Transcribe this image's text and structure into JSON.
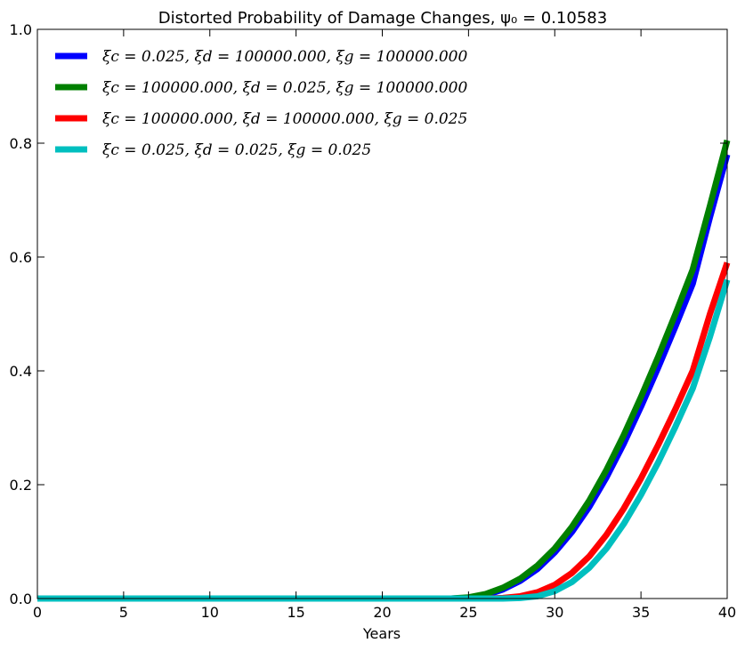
{
  "chart_data": {
    "type": "line",
    "title": "Distorted Probability of Damage Changes, ψ₀ = 0.10583",
    "xlabel": "Years",
    "ylabel": "",
    "xlim": [
      0,
      40
    ],
    "ylim": [
      0,
      1.0
    ],
    "x_ticks": [
      "0",
      "5",
      "10",
      "15",
      "20",
      "25",
      "30",
      "35",
      "40"
    ],
    "y_ticks": [
      "0.0",
      "0.2",
      "0.4",
      "0.6",
      "0.8",
      "1.0"
    ],
    "grid": false,
    "legend_position": "top-left",
    "x": [
      0,
      5,
      10,
      15,
      20,
      24,
      25,
      26,
      27,
      28,
      29,
      30,
      31,
      32,
      33,
      34,
      35,
      36,
      37,
      38,
      39,
      40
    ],
    "series": [
      {
        "name": "ξc = 0.025, ξd = 100000.000, ξg = 100000.000",
        "color": "#0000ff",
        "values": [
          0,
          0,
          0,
          0,
          0,
          0.0,
          0.001,
          0.006,
          0.016,
          0.031,
          0.052,
          0.081,
          0.117,
          0.161,
          0.213,
          0.272,
          0.337,
          0.406,
          0.478,
          0.553,
          0.67,
          0.78
        ]
      },
      {
        "name": "ξc = 100000.000, ξd = 0.025, ξg = 100000.000",
        "color": "#008000",
        "values": [
          0,
          0,
          0,
          0,
          0,
          0.0,
          0.002,
          0.008,
          0.019,
          0.035,
          0.058,
          0.088,
          0.126,
          0.172,
          0.226,
          0.287,
          0.354,
          0.425,
          0.5,
          0.578,
          0.69,
          0.805
        ]
      },
      {
        "name": "ξc = 100000.000, ξd = 100000.000, ξg = 0.025",
        "color": "#ff0000",
        "values": [
          0,
          0,
          0,
          0,
          0,
          0.0,
          0.0,
          0.0,
          0.001,
          0.004,
          0.011,
          0.024,
          0.045,
          0.074,
          0.112,
          0.158,
          0.211,
          0.27,
          0.333,
          0.4,
          0.5,
          0.59
        ]
      },
      {
        "name": "ξc = 0.025, ξd = 0.025, ξg = 0.025",
        "color": "#00bfbf",
        "values": [
          0,
          0,
          0,
          0,
          0,
          0.0,
          0.0,
          0.0,
          0.0,
          0.001,
          0.004,
          0.013,
          0.029,
          0.054,
          0.088,
          0.131,
          0.182,
          0.239,
          0.302,
          0.369,
          0.46,
          0.56
        ]
      }
    ]
  }
}
